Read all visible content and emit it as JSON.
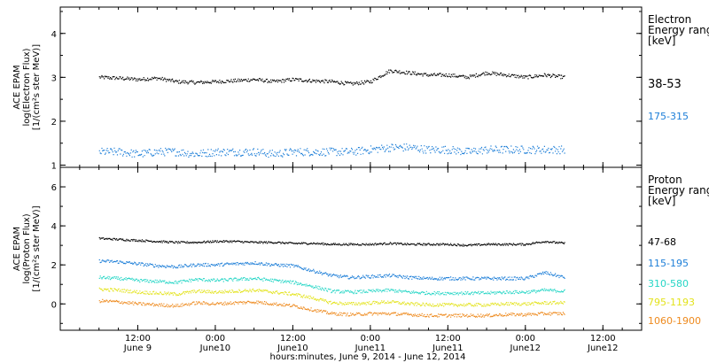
{
  "chart_data": [
    {
      "type": "scatter",
      "panel": "electron",
      "ylabel": [
        "ACE EPAM",
        "log(Electron Flux)",
        "[1/(cm²s ster MeV)]"
      ],
      "yticks": [
        1,
        2,
        3,
        4
      ],
      "ylim": [
        0.95,
        4.6
      ],
      "legend_title": [
        "Electron",
        "Energy range",
        "[keV]"
      ],
      "series": [
        {
          "name": "38-53",
          "color": "#000000",
          "x": [
            0,
            3,
            6,
            9,
            12,
            15,
            18,
            21,
            24,
            27,
            30,
            33,
            36,
            39,
            42,
            45,
            48,
            51,
            54,
            57,
            60,
            63,
            66,
            69,
            72
          ],
          "y": [
            3.0,
            2.98,
            2.95,
            2.98,
            2.9,
            2.88,
            2.9,
            2.92,
            2.95,
            2.9,
            2.95,
            2.92,
            2.9,
            2.85,
            2.9,
            3.15,
            3.1,
            3.05,
            3.05,
            3.0,
            3.1,
            3.05,
            3.0,
            3.05,
            3.0
          ]
        },
        {
          "name": "175-315",
          "color": "#1e7fd8",
          "x": [
            0,
            3,
            6,
            9,
            12,
            15,
            18,
            21,
            24,
            27,
            30,
            33,
            36,
            39,
            42,
            45,
            48,
            51,
            54,
            57,
            60,
            63,
            66,
            69,
            72
          ],
          "y": [
            1.3,
            1.3,
            1.25,
            1.3,
            1.3,
            1.25,
            1.3,
            1.3,
            1.3,
            1.25,
            1.3,
            1.3,
            1.3,
            1.3,
            1.35,
            1.4,
            1.4,
            1.35,
            1.35,
            1.3,
            1.35,
            1.35,
            1.35,
            1.35,
            1.35
          ]
        }
      ]
    },
    {
      "type": "scatter",
      "panel": "proton",
      "ylabel": [
        "ACE EPAM",
        "log(Proton Flux)",
        "[1/(cm²s ster MeV)]"
      ],
      "yticks": [
        0,
        2,
        4,
        6
      ],
      "ylim": [
        -1.35,
        7.0
      ],
      "legend_title": [
        "Proton",
        "Energy range",
        "[keV]"
      ],
      "series": [
        {
          "name": "47-68",
          "color": "#000000",
          "x": [
            0,
            3,
            6,
            9,
            12,
            15,
            18,
            21,
            24,
            27,
            30,
            33,
            36,
            39,
            42,
            45,
            48,
            51,
            54,
            57,
            60,
            63,
            66,
            69,
            72
          ],
          "y": [
            3.35,
            3.3,
            3.25,
            3.2,
            3.15,
            3.15,
            3.2,
            3.2,
            3.15,
            3.15,
            3.1,
            3.1,
            3.05,
            3.05,
            3.05,
            3.1,
            3.05,
            3.05,
            3.05,
            3.0,
            3.05,
            3.05,
            3.05,
            3.2,
            3.1
          ]
        },
        {
          "name": "115-195",
          "color": "#1e7fd8",
          "x": [
            0,
            3,
            6,
            9,
            12,
            15,
            18,
            21,
            24,
            27,
            30,
            33,
            36,
            39,
            42,
            45,
            48,
            51,
            54,
            57,
            60,
            63,
            66,
            69,
            72
          ],
          "y": [
            2.2,
            2.15,
            2.05,
            1.95,
            1.9,
            2.0,
            2.0,
            2.05,
            2.1,
            2.0,
            1.95,
            1.7,
            1.45,
            1.35,
            1.4,
            1.45,
            1.35,
            1.3,
            1.3,
            1.3,
            1.3,
            1.3,
            1.3,
            1.6,
            1.35
          ]
        },
        {
          "name": "310-580",
          "color": "#26d6c6",
          "x": [
            0,
            3,
            6,
            9,
            12,
            15,
            18,
            21,
            24,
            27,
            30,
            33,
            36,
            39,
            42,
            45,
            48,
            51,
            54,
            57,
            60,
            63,
            66,
            69,
            72
          ],
          "y": [
            1.35,
            1.3,
            1.2,
            1.15,
            1.1,
            1.25,
            1.2,
            1.25,
            1.3,
            1.2,
            1.1,
            0.9,
            0.65,
            0.6,
            0.65,
            0.7,
            0.6,
            0.55,
            0.55,
            0.55,
            0.55,
            0.6,
            0.6,
            0.7,
            0.65
          ]
        },
        {
          "name": "795-1193",
          "color": "#e3e31c",
          "x": [
            0,
            3,
            6,
            9,
            12,
            15,
            18,
            21,
            24,
            27,
            30,
            33,
            36,
            39,
            42,
            45,
            48,
            51,
            54,
            57,
            60,
            63,
            66,
            69,
            72
          ],
          "y": [
            0.75,
            0.7,
            0.6,
            0.55,
            0.5,
            0.65,
            0.6,
            0.65,
            0.7,
            0.6,
            0.5,
            0.3,
            0.05,
            0.0,
            0.05,
            0.1,
            0.0,
            -0.05,
            -0.05,
            -0.05,
            -0.05,
            0.0,
            0.0,
            0.05,
            0.05
          ]
        },
        {
          "name": "1060-1900",
          "color": "#ee8a1e",
          "x": [
            0,
            3,
            6,
            9,
            12,
            15,
            18,
            21,
            24,
            27,
            30,
            33,
            36,
            39,
            42,
            45,
            48,
            51,
            54,
            57,
            60,
            63,
            66,
            69,
            72
          ],
          "y": [
            0.15,
            0.1,
            0.0,
            -0.05,
            -0.1,
            0.05,
            0.0,
            0.05,
            0.1,
            0.0,
            -0.1,
            -0.3,
            -0.5,
            -0.55,
            -0.5,
            -0.5,
            -0.55,
            -0.6,
            -0.6,
            -0.6,
            -0.6,
            -0.55,
            -0.55,
            -0.5,
            -0.5
          ]
        }
      ]
    }
  ],
  "x_axis": {
    "xlim": [
      -6,
      84
    ],
    "ticks": [
      {
        "x": 6,
        "line1": "12:00",
        "line2": "June 9"
      },
      {
        "x": 18,
        "line1": "0:00",
        "line2": "June10"
      },
      {
        "x": 30,
        "line1": "12:00",
        "line2": "June10"
      },
      {
        "x": 42,
        "line1": "0:00",
        "line2": "June11"
      },
      {
        "x": 54,
        "line1": "12:00",
        "line2": "June11"
      },
      {
        "x": 66,
        "line1": "0:00",
        "line2": "June12"
      },
      {
        "x": 78,
        "line1": "12:00",
        "line2": "June12"
      }
    ],
    "xlabel": "hours:minutes, June  9, 2014 - June 12, 2014"
  }
}
